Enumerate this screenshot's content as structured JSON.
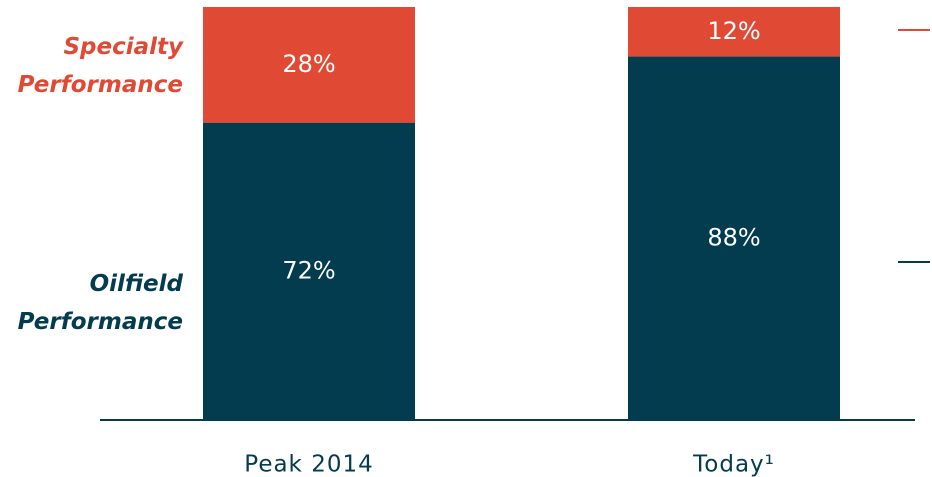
{
  "chart_data": {
    "type": "stacked_bar",
    "categories": [
      "Peak 2014",
      "Today¹"
    ],
    "series": [
      {
        "name": "Oilfield Performance",
        "color": "#033b4f",
        "values": [
          72,
          88
        ],
        "value_labels": [
          "72%",
          "88%"
        ]
      },
      {
        "name": "Specialty Performance",
        "color": "#e04a35",
        "values": [
          28,
          12
        ],
        "value_labels": [
          "28%",
          "12%"
        ]
      }
    ],
    "ylim": [
      0,
      100
    ]
  }
}
